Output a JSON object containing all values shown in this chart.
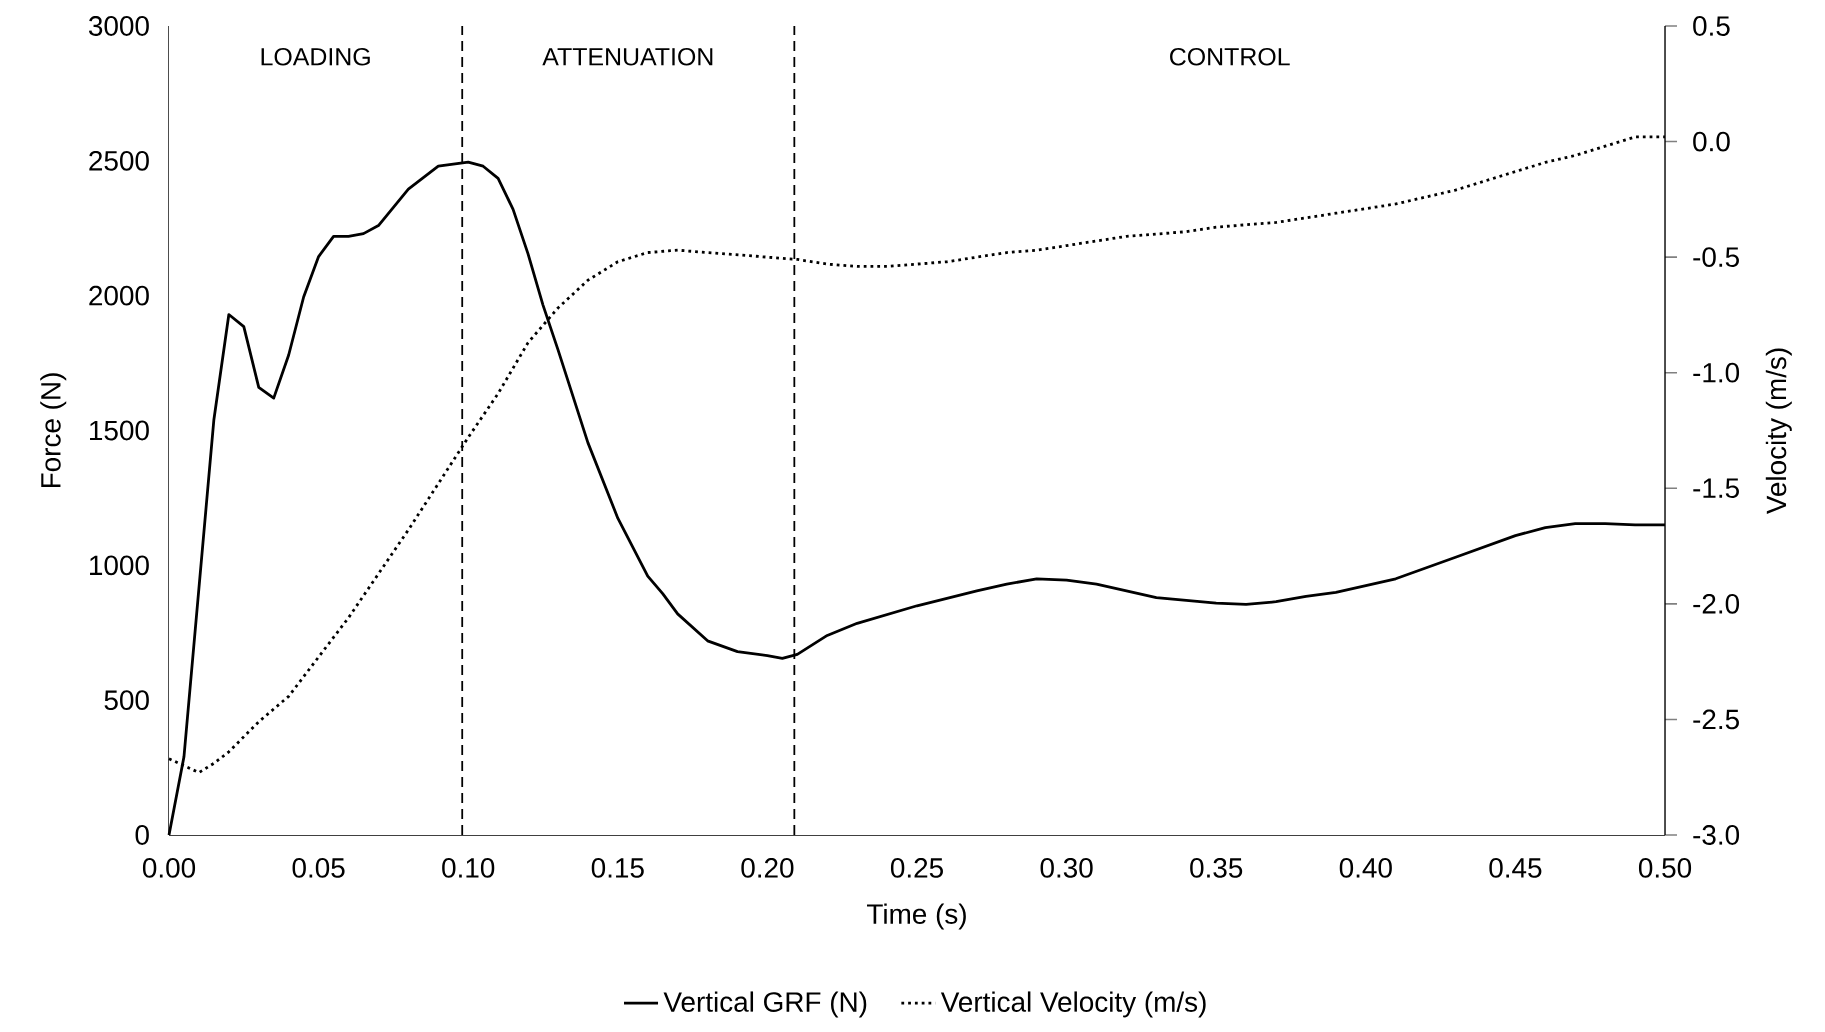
{
  "chart_data": {
    "type": "line",
    "xlabel": "Time (s)",
    "ylabel": "Force (N)",
    "y2label": "Velocity (m/s)",
    "xlim": [
      0,
      0.5
    ],
    "xticks": [
      {
        "value": 0,
        "label": "0.00"
      },
      {
        "value": 0.05,
        "label": "0.05"
      },
      {
        "value": 0.1,
        "label": "0.10"
      },
      {
        "value": 0.15,
        "label": "0.15"
      },
      {
        "value": 0.2,
        "label": "0.20"
      },
      {
        "value": 0.25,
        "label": "0.25"
      },
      {
        "value": 0.3,
        "label": "0.30"
      },
      {
        "value": 0.35,
        "label": "0.35"
      },
      {
        "value": 0.4,
        "label": "0.40"
      },
      {
        "value": 0.45,
        "label": "0.45"
      },
      {
        "value": 0.5,
        "label": "0.50"
      }
    ],
    "ylim": [
      0,
      3000
    ],
    "yticks": [
      0,
      500,
      1000,
      1500,
      2000,
      2500,
      3000
    ],
    "y2lim": [
      -3,
      0.5
    ],
    "y2ticks": [
      {
        "value": -3,
        "label": "-3.0"
      },
      {
        "value": -2.5,
        "label": "-2.5"
      },
      {
        "value": -2,
        "label": "-2.0"
      },
      {
        "value": -1.5,
        "label": "-1.5"
      },
      {
        "value": -1,
        "label": "-1.0"
      },
      {
        "value": -0.5,
        "label": "-0.5"
      },
      {
        "value": 0,
        "label": "0.0"
      },
      {
        "value": 0.5,
        "label": "0.5"
      }
    ],
    "legend": "bottom",
    "grid": false,
    "marker": "none",
    "ref_lines": [
      {
        "axis": "x",
        "value": 0.098,
        "line_style": "dashed",
        "color": "#000000"
      },
      {
        "axis": "x",
        "value": 0.209,
        "line_style": "dashed",
        "color": "#000000"
      }
    ],
    "bands": [
      {
        "axis": "x",
        "from": 0,
        "to": 0.098,
        "label": "LOADING",
        "color": "#ffffff"
      },
      {
        "axis": "x",
        "from": 0.098,
        "to": 0.209,
        "label": "ATTENUATION",
        "color": "#ffffff"
      },
      {
        "axis": "x",
        "from": 0.209,
        "to": 0.5,
        "label": "CONTROL",
        "color": "#ffffff"
      }
    ],
    "series": [
      {
        "name": "Vertical GRF (N)",
        "color": "#000000",
        "line_style": "solid",
        "x": [
          0,
          0.005,
          0.015,
          0.02,
          0.025,
          0.03,
          0.035,
          0.04,
          0.045,
          0.05,
          0.055,
          0.06,
          0.065,
          0.07,
          0.08,
          0.09,
          0.1,
          0.105,
          0.11,
          0.115,
          0.12,
          0.125,
          0.13,
          0.14,
          0.15,
          0.16,
          0.165,
          0.17,
          0.18,
          0.19,
          0.2,
          0.205,
          0.21,
          0.22,
          0.23,
          0.25,
          0.27,
          0.28,
          0.29,
          0.3,
          0.31,
          0.32,
          0.33,
          0.34,
          0.35,
          0.36,
          0.37,
          0.38,
          0.39,
          0.4,
          0.41,
          0.42,
          0.43,
          0.44,
          0.45,
          0.46,
          0.47,
          0.48,
          0.49,
          0.5
        ],
        "values": [
          0,
          290,
          1540,
          1930,
          1885,
          1660,
          1620,
          1780,
          1995,
          2145,
          2220,
          2220,
          2230,
          2260,
          2395,
          2480,
          2495,
          2480,
          2435,
          2320,
          2155,
          1965,
          1800,
          1455,
          1175,
          960,
          895,
          820,
          720,
          680,
          665,
          655,
          670,
          740,
          785,
          850,
          905,
          930,
          950,
          945,
          930,
          905,
          880,
          870,
          860,
          855,
          865,
          885,
          900,
          925,
          950,
          990,
          1030,
          1070,
          1110,
          1140,
          1155,
          1155,
          1150,
          1150
        ]
      },
      {
        "name": "Vertical Velocity (m/s)",
        "color": "#000000",
        "line_style": "dotted",
        "axis": "y2",
        "x": [
          0,
          0.005,
          0.01,
          0.015,
          0.02,
          0.03,
          0.04,
          0.05,
          0.06,
          0.07,
          0.08,
          0.09,
          0.1,
          0.11,
          0.12,
          0.13,
          0.14,
          0.15,
          0.16,
          0.17,
          0.18,
          0.19,
          0.2,
          0.21,
          0.22,
          0.23,
          0.24,
          0.25,
          0.26,
          0.27,
          0.28,
          0.29,
          0.3,
          0.31,
          0.32,
          0.33,
          0.34,
          0.35,
          0.36,
          0.37,
          0.38,
          0.39,
          0.4,
          0.41,
          0.42,
          0.43,
          0.44,
          0.45,
          0.46,
          0.47,
          0.48,
          0.49,
          0.5
        ],
        "values": [
          -2.67,
          -2.7,
          -2.73,
          -2.69,
          -2.64,
          -2.51,
          -2.4,
          -2.23,
          -2.06,
          -1.87,
          -1.68,
          -1.48,
          -1.28,
          -1.09,
          -0.87,
          -0.72,
          -0.6,
          -0.52,
          -0.48,
          -0.47,
          -0.48,
          -0.49,
          -0.5,
          -0.51,
          -0.53,
          -0.54,
          -0.54,
          -0.53,
          -0.52,
          -0.5,
          -0.48,
          -0.47,
          -0.45,
          -0.43,
          -0.41,
          -0.4,
          -0.39,
          -0.37,
          -0.36,
          -0.35,
          -0.33,
          -0.31,
          -0.29,
          -0.27,
          -0.24,
          -0.21,
          -0.17,
          -0.13,
          -0.09,
          -0.06,
          -0.02,
          0.02,
          0.02
        ]
      }
    ]
  }
}
